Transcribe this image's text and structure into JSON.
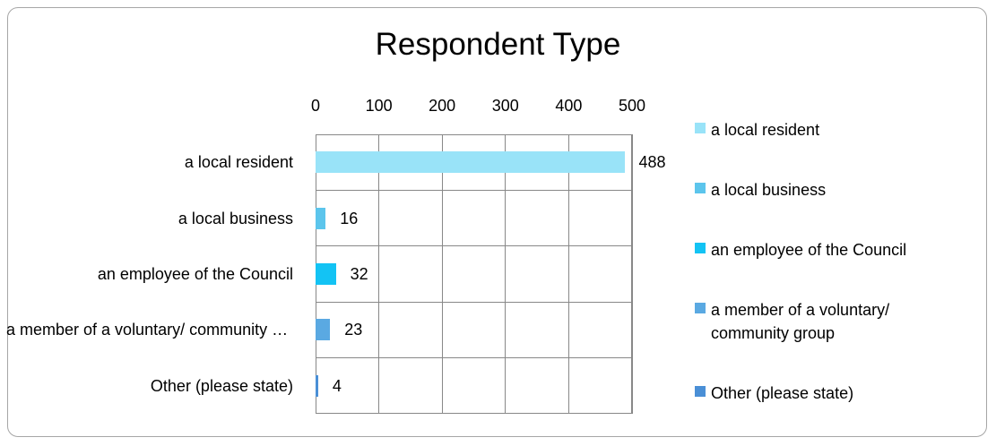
{
  "chart_data": {
    "type": "bar",
    "orientation": "horizontal",
    "title": "Respondent Type",
    "categories": [
      "a local resident",
      "a local business",
      "an employee of the Council",
      "a member of a voluntary/ community group",
      "Other (please state)"
    ],
    "values": [
      488,
      16,
      32,
      23,
      4
    ],
    "colors": [
      "#99e3f8",
      "#5cc5ec",
      "#13c3f4",
      "#5aa9e2",
      "#4a8fd6"
    ],
    "xlim": [
      0,
      500
    ],
    "xticks": [
      0,
      100,
      200,
      300,
      400,
      500
    ],
    "xaxis_position": "top",
    "grid": true,
    "legend": "right"
  }
}
